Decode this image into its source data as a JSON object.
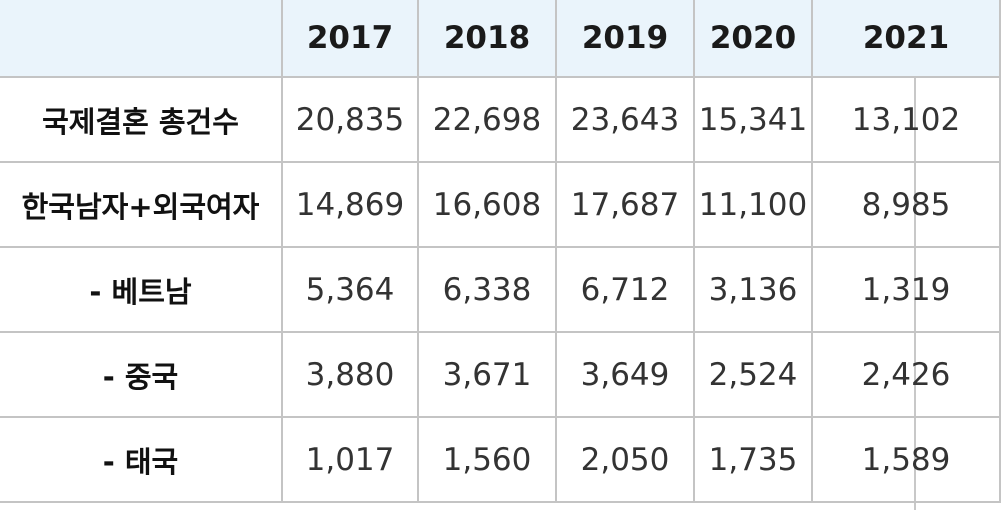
{
  "table": {
    "years": [
      "2017",
      "2018",
      "2019",
      "2020",
      "2021"
    ],
    "rows": [
      {
        "label": "국제결혼 총건수",
        "values": [
          "20,835",
          "22,698",
          "23,643",
          "15,341",
          "13,102"
        ]
      },
      {
        "label": "한국남자+외국여자",
        "values": [
          "14,869",
          "16,608",
          "17,687",
          "11,100",
          "8,985"
        ]
      },
      {
        "label": "- 베트남",
        "values": [
          "5,364",
          "6,338",
          "6,712",
          "3,136",
          "1,319"
        ]
      },
      {
        "label": "- 중국",
        "values": [
          "3,880",
          "3,671",
          "3,649",
          "2,524",
          "2,426"
        ]
      },
      {
        "label": "- 태국",
        "values": [
          "1,017",
          "1,560",
          "2,050",
          "1,735",
          "1,589"
        ]
      }
    ]
  }
}
